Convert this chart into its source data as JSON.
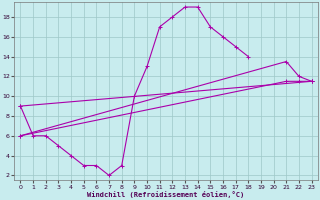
{
  "background_color": "#c8ecee",
  "grid_color": "#9ec8c8",
  "line_color": "#aa00aa",
  "xlim": [
    -0.5,
    23.5
  ],
  "ylim": [
    1.5,
    19.5
  ],
  "xticks": [
    0,
    1,
    2,
    3,
    4,
    5,
    6,
    7,
    8,
    9,
    10,
    11,
    12,
    13,
    14,
    15,
    16,
    17,
    18,
    19,
    20,
    21,
    22,
    23
  ],
  "yticks": [
    2,
    4,
    6,
    8,
    10,
    12,
    14,
    16,
    18
  ],
  "xlabel": "Windchill (Refroidissement éolien,°C)",
  "curve1_x": [
    0,
    1,
    2,
    3,
    4,
    5,
    6,
    7,
    8,
    9,
    10,
    11,
    12,
    13,
    14,
    15,
    16,
    17,
    18
  ],
  "curve1_y": [
    9,
    6,
    6,
    5,
    4,
    3,
    3,
    2,
    3,
    10,
    13,
    17,
    18,
    19,
    19,
    17,
    16,
    15,
    14
  ],
  "line1_x": [
    0,
    23
  ],
  "line1_y": [
    9.0,
    11.5
  ],
  "line2_x": [
    0,
    21,
    22,
    23
  ],
  "line2_y": [
    6.0,
    13.5,
    12.0,
    11.5
  ],
  "line3_x": [
    0,
    21,
    22,
    23
  ],
  "line3_y": [
    6.0,
    11.5,
    11.5,
    11.5
  ]
}
